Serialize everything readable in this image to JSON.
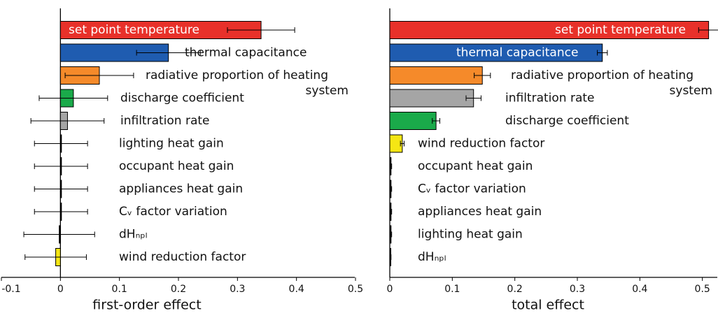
{
  "chart_data": [
    {
      "type": "bar",
      "orientation": "horizontal",
      "xlabel": "first-order effect",
      "categories": [
        "set point temperature",
        "thermal capacitance",
        "radiative proportion of heating system",
        "discharge coefficient",
        "infiltration rate",
        "lighting heat gain",
        "occupant heat gain",
        "appliances heat gain",
        "Cᵥ factor variation",
        "dHₙₚₗ",
        "wind reduction factor"
      ],
      "values": [
        0.34,
        0.183,
        0.066,
        0.022,
        0.012,
        0.001,
        0.001,
        0.001,
        0.001,
        -0.002,
        -0.008
      ],
      "errors": [
        0.057,
        0.054,
        0.058,
        0.058,
        0.062,
        0.045,
        0.045,
        0.045,
        0.045,
        0.06,
        0.052
      ],
      "colors": [
        "#e8312a",
        "#1f5cb0",
        "#f58a2a",
        "#1aaa4a",
        "#a5a5a5",
        "#000000",
        "#000000",
        "#000000",
        "#000000",
        "#000000",
        "#f5e614"
      ],
      "xlim": [
        -0.1,
        0.5
      ],
      "xticks": [
        -0.1,
        0,
        0.1,
        0.2,
        0.3,
        0.4,
        0.5
      ]
    },
    {
      "type": "bar",
      "orientation": "horizontal",
      "xlabel": "total effect",
      "categories": [
        "set point temperature",
        "thermal capacitance",
        "radiative proportion of heating system",
        "infiltration rate",
        "discharge coefficient",
        "wind reduction factor",
        "occupant heat gain",
        "Cᵥ factor variation",
        "appliances heat gain",
        "lighting heat gain",
        "dHₙₚₗ"
      ],
      "values": [
        0.51,
        0.34,
        0.148,
        0.134,
        0.074,
        0.02,
        0.002,
        0.002,
        0.002,
        0.002,
        0.001
      ],
      "errors": [
        0.016,
        0.008,
        0.013,
        0.012,
        0.006,
        0.003,
        0.001,
        0.001,
        0.001,
        0.001,
        0.001
      ],
      "colors": [
        "#e8312a",
        "#1f5cb0",
        "#f58a2a",
        "#a5a5a5",
        "#1aaa4a",
        "#f5e614",
        "#000000",
        "#000000",
        "#000000",
        "#000000",
        "#000000"
      ],
      "xlim": [
        0,
        0.525
      ],
      "xticks": [
        0,
        0.1,
        0.2,
        0.3,
        0.4,
        0.5
      ]
    }
  ]
}
